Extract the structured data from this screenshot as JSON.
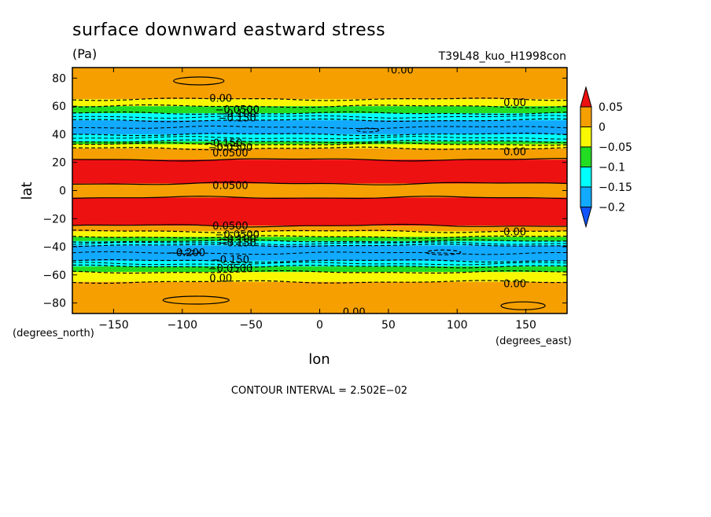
{
  "chart_data": {
    "type": "heatmap",
    "title": "surface downward eastward stress",
    "units": "(Pa)",
    "run_label": "T39L48_kuo_H1998con",
    "xlabel": "lon",
    "ylabel": "lat",
    "x_units": "(degrees_east)",
    "y_units": "(degrees_north)",
    "xlim": [
      -180,
      180
    ],
    "ylim": [
      -87.5,
      87.5
    ],
    "x_ticks": [
      -150,
      -100,
      -50,
      0,
      50,
      100,
      150
    ],
    "y_ticks": [
      80,
      60,
      40,
      20,
      0,
      -20,
      -40,
      -60,
      -80
    ],
    "x_tick_labels": [
      "−150",
      "−100",
      "−50",
      "0",
      "50",
      "100",
      "150"
    ],
    "y_tick_labels": [
      "80",
      "60",
      "40",
      "20",
      "0",
      "−20",
      "−40",
      "−60",
      "−80"
    ],
    "contour_interval_text": "CONTOUR INTERVAL = 2.502E−02",
    "colorbar": {
      "ticks": [
        "0.05",
        "0",
        "−0.05",
        "−0.1",
        "−0.15",
        "−0.2"
      ],
      "colors": [
        "#ee1111",
        "#f5a000",
        "#f8f800",
        "#22dd22",
        "#00ffff",
        "#11aaff",
        "#1155ff"
      ]
    },
    "zonal_bands": [
      {
        "lat_from": 87.5,
        "lat_to": 65,
        "value": 0.01
      },
      {
        "lat_from": 65,
        "lat_to": 60,
        "value": -0.03
      },
      {
        "lat_from": 60,
        "lat_to": 55,
        "value": -0.07
      },
      {
        "lat_from": 55,
        "lat_to": 50,
        "value": -0.12
      },
      {
        "lat_from": 50,
        "lat_to": 40,
        "value": -0.17
      },
      {
        "lat_from": 40,
        "lat_to": 35,
        "value": -0.12
      },
      {
        "lat_from": 35,
        "lat_to": 33,
        "value": -0.07
      },
      {
        "lat_from": 33,
        "lat_to": 30,
        "value": -0.03
      },
      {
        "lat_from": 30,
        "lat_to": 22,
        "value": 0.01
      },
      {
        "lat_from": 22,
        "lat_to": 5,
        "value": 0.08
      },
      {
        "lat_from": 5,
        "lat_to": -5,
        "value": 0.02
      },
      {
        "lat_from": -5,
        "lat_to": -25,
        "value": 0.08
      },
      {
        "lat_from": -25,
        "lat_to": -29,
        "value": 0.01
      },
      {
        "lat_from": -29,
        "lat_to": -33,
        "value": -0.03
      },
      {
        "lat_from": -33,
        "lat_to": -36,
        "value": -0.08
      },
      {
        "lat_from": -36,
        "lat_to": -39,
        "value": -0.12
      },
      {
        "lat_from": -39,
        "lat_to": -50,
        "value": -0.17
      },
      {
        "lat_from": -50,
        "lat_to": -54,
        "value": -0.12
      },
      {
        "lat_from": -54,
        "lat_to": -58,
        "value": -0.07
      },
      {
        "lat_from": -58,
        "lat_to": -65,
        "value": -0.03
      },
      {
        "lat_from": -65,
        "lat_to": -87.5,
        "value": 0.01
      }
    ],
    "contour_labels": [
      {
        "text": "0.00",
        "lon": 60,
        "lat": 86
      },
      {
        "text": "0.00",
        "lon": -72,
        "lat": 66
      },
      {
        "text": "0.00",
        "lon": 142,
        "lat": 63
      },
      {
        "text": "−0.0500",
        "lon": -60,
        "lat": 58
      },
      {
        "text": "−0.100",
        "lon": -60,
        "lat": 55
      },
      {
        "text": "−0.150",
        "lon": -60,
        "lat": 52
      },
      {
        "text": "−0.150",
        "lon": -70,
        "lat": 34
      },
      {
        "text": "−0.0500",
        "lon": -65,
        "lat": 31
      },
      {
        "text": "0.0500",
        "lon": -65,
        "lat": 27
      },
      {
        "text": "0.00",
        "lon": 142,
        "lat": 28
      },
      {
        "text": "0.0500",
        "lon": -65,
        "lat": 4
      },
      {
        "text": "0.0500",
        "lon": -65,
        "lat": -25
      },
      {
        "text": "0.00",
        "lon": 142,
        "lat": -29
      },
      {
        "text": "−0.0500",
        "lon": -60,
        "lat": -31
      },
      {
        "text": "−0.100",
        "lon": -60,
        "lat": -34
      },
      {
        "text": "−0.150",
        "lon": -60,
        "lat": -37
      },
      {
        "text": "−0.200",
        "lon": -97,
        "lat": -44
      },
      {
        "text": "−0.150",
        "lon": -65,
        "lat": -49
      },
      {
        "text": "−0.0500",
        "lon": -65,
        "lat": -55
      },
      {
        "text": "0.00",
        "lon": -72,
        "lat": -62
      },
      {
        "text": "0.00",
        "lon": 142,
        "lat": -66
      },
      {
        "text": "0.00",
        "lon": 25,
        "lat": -86
      }
    ]
  }
}
